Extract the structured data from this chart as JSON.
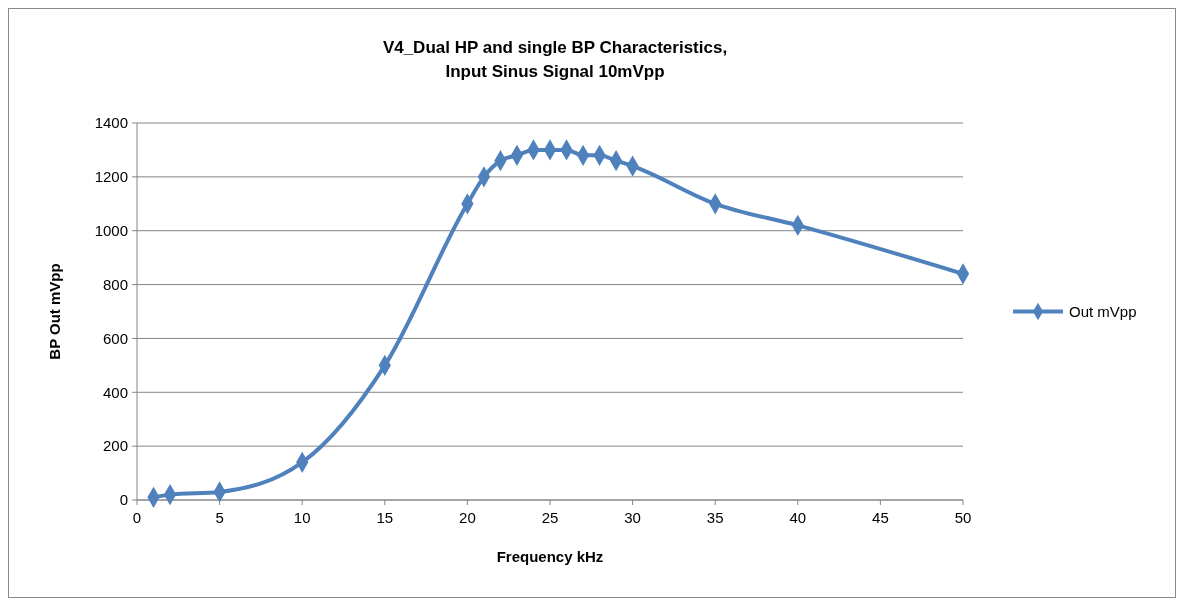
{
  "chart_data": {
    "type": "line",
    "title": "V4_Dual HP and single BP Characteristics,\nInput Sinus Signal 10mVpp",
    "xlabel": "Frequency kHz",
    "ylabel": "BP Out mVpp",
    "x": [
      1,
      2,
      5,
      10,
      15,
      20,
      21,
      22,
      23,
      24,
      25,
      26,
      27,
      28,
      29,
      30,
      35,
      40,
      50
    ],
    "series": [
      {
        "name": "Out mVpp",
        "color": "#4f81bd",
        "values": [
          10,
          20,
          30,
          140,
          500,
          1100,
          1200,
          1260,
          1280,
          1300,
          1300,
          1300,
          1280,
          1280,
          1260,
          1240,
          1100,
          1020,
          840
        ]
      }
    ],
    "xlim": [
      0,
      50
    ],
    "xticks": [
      0,
      5,
      10,
      15,
      20,
      25,
      30,
      35,
      40,
      45,
      50
    ],
    "ylim": [
      0,
      1400
    ],
    "yticks": [
      0,
      200,
      400,
      600,
      800,
      1000,
      1200,
      1400
    ],
    "grid": "y",
    "legend": "right",
    "marker": "diamond",
    "line_style": "solid"
  }
}
